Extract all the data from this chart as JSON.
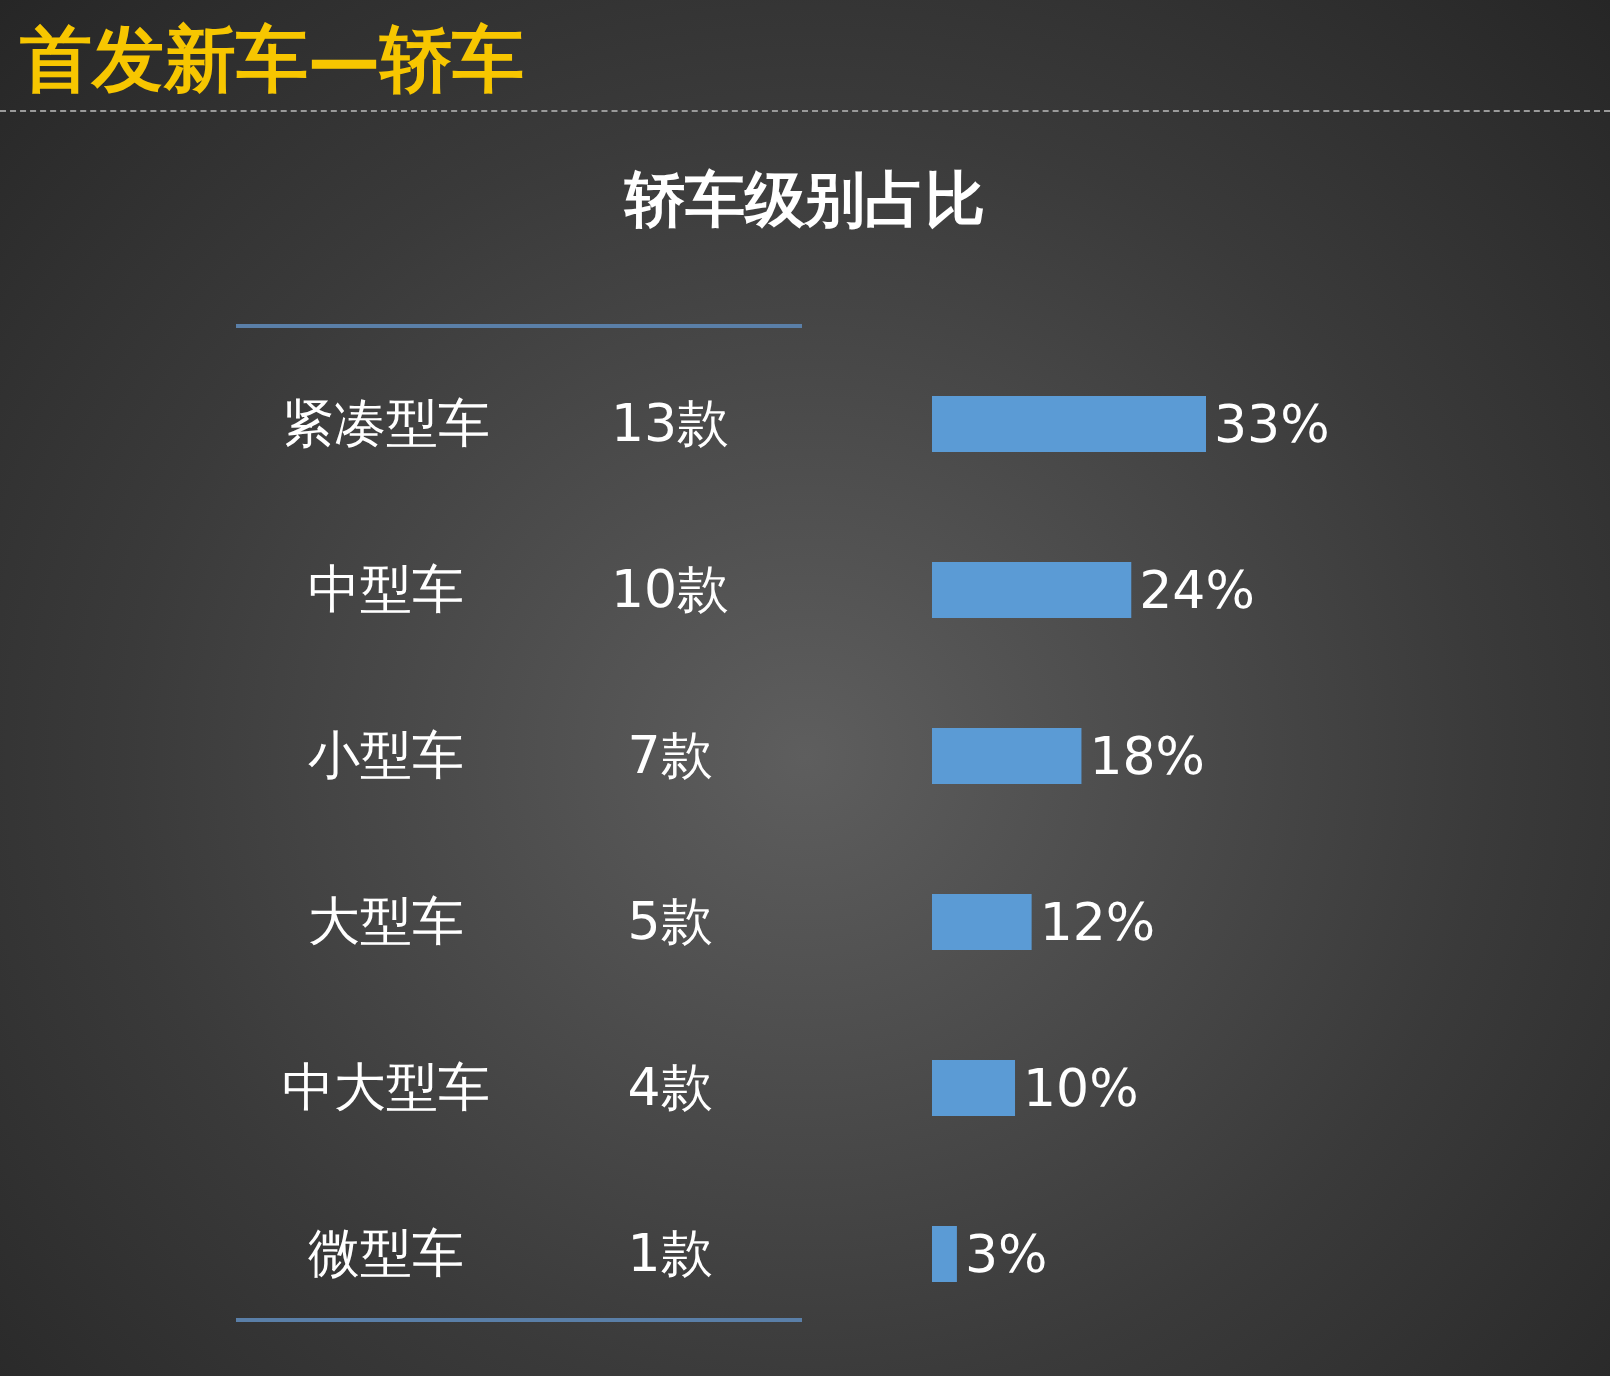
{
  "chart_data": {
    "type": "bar",
    "orientation": "horizontal",
    "title": "首发新车—轿车",
    "subtitle": "轿车级别占比",
    "categories": [
      "紧凑型车",
      "中型车",
      "小型车",
      "大型车",
      "中大型车",
      "微型车"
    ],
    "values": [
      33,
      24,
      18,
      12,
      10,
      3
    ],
    "value_labels": [
      "33%",
      "24%",
      "18%",
      "12%",
      "10%",
      "3%"
    ],
    "color": "#5b9bd5",
    "annotations": [
      "13款",
      "10款",
      "7款",
      "5款",
      "4款",
      "1款"
    ],
    "grid": false,
    "legend": false
  }
}
